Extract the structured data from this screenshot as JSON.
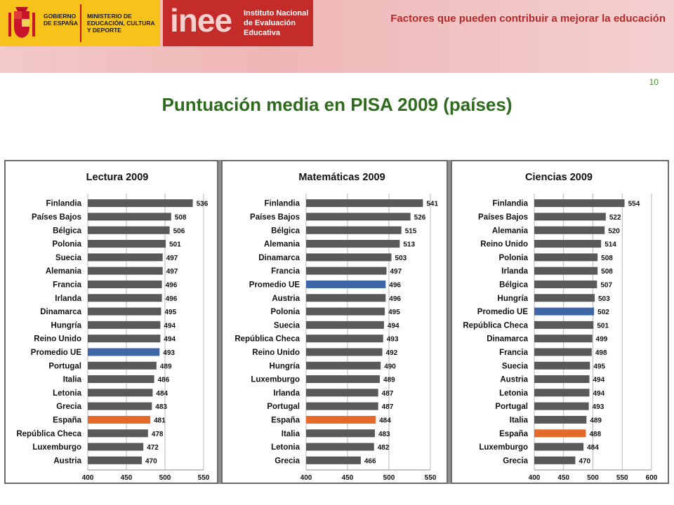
{
  "header": {
    "gov_logo_text_1": "GOBIERNO DE ESPAÑA",
    "gov_logo_text_2": "MINISTERIO DE EDUCACIÓN, CULTURA Y DEPORTE",
    "inee_wordmark": "inee",
    "inee_text": "Instituto Nacional de Evaluación Educativa",
    "title": "Factores que pueden contribuir a mejorar la educación"
  },
  "page_number": "10",
  "main_title": "Puntuación media en PISA 2009 (países)",
  "colors": {
    "default_bar": "#595959",
    "highlight_eu": "#3f67a8",
    "highlight_spain": "#e56a2a"
  },
  "chart_data": [
    {
      "type": "bar",
      "orientation": "horizontal",
      "title": "Lectura 2009",
      "categories": [
        "Finlandia",
        "Países Bajos",
        "Bélgica",
        "Polonia",
        "Suecia",
        "Alemania",
        "Francia",
        "Irlanda",
        "Dinamarca",
        "Hungría",
        "Reino Unido",
        "Promedio UE",
        "Portugal",
        "Italia",
        "Letonia",
        "Grecia",
        "España",
        "República Checa",
        "Luxemburgo",
        "Austria"
      ],
      "values": [
        536,
        508,
        506,
        501,
        497,
        497,
        496,
        496,
        495,
        494,
        494,
        493,
        489,
        486,
        484,
        483,
        481,
        478,
        472,
        470
      ],
      "highlight": {
        "Promedio UE": "eu",
        "España": "spain"
      },
      "xlim": [
        400,
        550
      ],
      "xticks": [
        400,
        450,
        500,
        550
      ]
    },
    {
      "type": "bar",
      "orientation": "horizontal",
      "title": "Matemáticas 2009",
      "categories": [
        "Finlandia",
        "Países Bajos",
        "Bélgica",
        "Alemania",
        "Dinamarca",
        "Francia",
        "Promedio UE",
        "Austria",
        "Polonia",
        "Suecia",
        "República Checa",
        "Reino Unido",
        "Hungría",
        "Luxemburgo",
        "Irlanda",
        "Portugal",
        "España",
        "Italia",
        "Letonia",
        "Grecia"
      ],
      "values": [
        541,
        526,
        515,
        513,
        503,
        497,
        496,
        496,
        495,
        494,
        493,
        492,
        490,
        489,
        487,
        487,
        484,
        483,
        482,
        466
      ],
      "highlight": {
        "Promedio UE": "eu",
        "España": "spain"
      },
      "xlim": [
        400,
        550
      ],
      "xticks": [
        400,
        450,
        500,
        550
      ]
    },
    {
      "type": "bar",
      "orientation": "horizontal",
      "title": "Ciencias 2009",
      "categories": [
        "Finlandia",
        "Países Bajos",
        "Alemania",
        "Reino Unido",
        "Polonia",
        "Irlanda",
        "Bélgica",
        "Hungría",
        "Promedio UE",
        "República Checa",
        "Dinamarca",
        "Francia",
        "Suecia",
        "Austria",
        "Letonia",
        "Portugal",
        "Italia",
        "España",
        "Luxemburgo",
        "Grecia"
      ],
      "values": [
        554,
        522,
        520,
        514,
        508,
        508,
        507,
        503,
        502,
        501,
        499,
        498,
        495,
        494,
        494,
        493,
        489,
        488,
        484,
        470
      ],
      "highlight": {
        "Promedio UE": "eu",
        "España": "spain"
      },
      "xlim": [
        400,
        600
      ],
      "xticks": [
        400,
        450,
        500,
        550,
        600
      ]
    }
  ]
}
